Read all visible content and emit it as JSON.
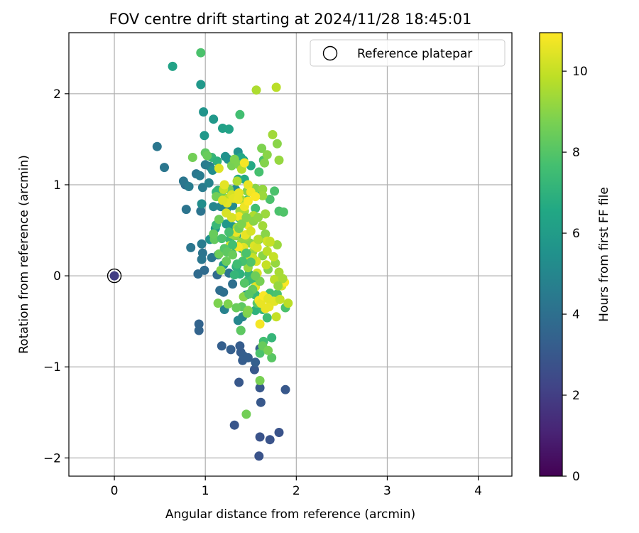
{
  "chart_data": {
    "type": "scatter",
    "title": "FOV centre drift starting at 2024/11/28 18:45:01",
    "xlabel": "Angular distance from reference (arcmin)",
    "ylabel": "Rotation from reference (arcmin)",
    "xlim": [
      -0.5,
      4.37
    ],
    "ylim": [
      -2.2,
      2.67
    ],
    "xticks": [
      0,
      1,
      2,
      3,
      4
    ],
    "yticks": [
      -2,
      -1,
      0,
      1,
      2
    ],
    "xtick_labels": [
      "0",
      "1",
      "2",
      "3",
      "4"
    ],
    "ytick_labels": [
      "−2",
      "−1",
      "0",
      "1",
      "2"
    ],
    "grid": true,
    "legend": {
      "position": "top-right",
      "entries": [
        "Reference platepar"
      ]
    },
    "reference_point": {
      "x": 0,
      "y": 0,
      "hours": 2.0
    },
    "colorbar": {
      "label": "Hours from first FF file",
      "range": [
        0,
        10.95
      ],
      "ticks": [
        0,
        2,
        4,
        6,
        8,
        10
      ],
      "tick_labels": [
        "0",
        "2",
        "4",
        "6",
        "8",
        "10"
      ],
      "colormap": "viridis"
    },
    "point_columns": [
      "x",
      "y",
      "hours"
    ],
    "points": [
      [
        1.59,
        -1.98,
        2.8
      ],
      [
        1.81,
        -1.72,
        2.8
      ],
      [
        1.6,
        -1.77,
        2.8
      ],
      [
        1.71,
        -1.8,
        2.8
      ],
      [
        1.32,
        -1.64,
        2.9
      ],
      [
        1.88,
        -1.25,
        3.0
      ],
      [
        1.6,
        -1.23,
        3.0
      ],
      [
        1.61,
        -1.39,
        3.0
      ],
      [
        1.37,
        -1.17,
        3.0
      ],
      [
        1.54,
        -1.03,
        3.0
      ],
      [
        1.38,
        -0.77,
        3.2
      ],
      [
        1.41,
        -0.93,
        3.2
      ],
      [
        1.39,
        -0.84,
        3.2
      ],
      [
        1.42,
        -0.88,
        3.3
      ],
      [
        1.47,
        -0.9,
        3.3
      ],
      [
        1.28,
        -0.81,
        3.3
      ],
      [
        1.18,
        -0.77,
        3.3
      ],
      [
        1.6,
        -0.8,
        3.3
      ],
      [
        1.55,
        -0.95,
        3.3
      ],
      [
        0.93,
        -0.53,
        3.5
      ],
      [
        0.93,
        -0.6,
        3.5
      ],
      [
        0.92,
        0.02,
        3.8
      ],
      [
        1.13,
        0.01,
        3.8
      ],
      [
        0.99,
        0.06,
        3.8
      ],
      [
        1.16,
        -0.16,
        3.9
      ],
      [
        1.3,
        -0.09,
        4.0
      ],
      [
        1.2,
        -0.18,
        4.0
      ],
      [
        1.26,
        0.03,
        4.2
      ],
      [
        1.35,
        0.12,
        4.2
      ],
      [
        0.97,
        0.25,
        4.2
      ],
      [
        0.96,
        0.18,
        4.3
      ],
      [
        1.07,
        0.2,
        4.3
      ],
      [
        0.84,
        0.31,
        4.3
      ],
      [
        0.96,
        0.35,
        4.5
      ],
      [
        1.14,
        0.23,
        4.5
      ],
      [
        1.21,
        -0.37,
        4.8
      ],
      [
        1.41,
        -0.45,
        4.8
      ],
      [
        1.36,
        -0.49,
        5.0
      ],
      [
        1.39,
        -0.6,
        5.2
      ],
      [
        1.45,
        -0.21,
        5.3
      ],
      [
        0.78,
        1.0,
        4.0
      ],
      [
        0.79,
        0.73,
        4.2
      ],
      [
        0.47,
        1.42,
        4.3
      ],
      [
        0.55,
        1.19,
        4.3
      ],
      [
        0.76,
        1.04,
        4.3
      ],
      [
        0.82,
        0.98,
        4.5
      ],
      [
        0.9,
        1.12,
        4.3
      ],
      [
        0.94,
        1.1,
        4.5
      ],
      [
        0.97,
        0.97,
        4.5
      ],
      [
        0.95,
        0.71,
        4.2
      ],
      [
        1.0,
        1.22,
        4.5
      ],
      [
        1.05,
        1.2,
        4.7
      ],
      [
        1.04,
        1.02,
        4.8
      ],
      [
        1.09,
        0.76,
        5.0
      ],
      [
        1.17,
        0.76,
        5.0
      ],
      [
        1.23,
        0.73,
        5.0
      ],
      [
        1.3,
        0.77,
        5.2
      ],
      [
        1.33,
        0.95,
        5.2
      ],
      [
        1.08,
        1.16,
        5.3
      ],
      [
        1.22,
        1.31,
        5.5
      ],
      [
        1.25,
        1.28,
        5.5
      ],
      [
        1.36,
        1.36,
        5.5
      ],
      [
        0.96,
        0.79,
        5.3
      ],
      [
        1.05,
        0.4,
        5.5
      ],
      [
        1.11,
        0.52,
        5.7
      ],
      [
        1.23,
        0.57,
        5.8
      ],
      [
        1.3,
        0.54,
        5.8
      ],
      [
        1.4,
        0.62,
        6.0
      ],
      [
        1.34,
        0.44,
        6.0
      ],
      [
        1.2,
        0.12,
        5.8
      ],
      [
        0.98,
        1.8,
        5.6
      ],
      [
        1.09,
        1.72,
        5.8
      ],
      [
        0.99,
        1.54,
        5.8
      ],
      [
        1.19,
        1.62,
        6.2
      ],
      [
        1.26,
        1.61,
        6.3
      ],
      [
        1.39,
        1.3,
        6.5
      ],
      [
        1.42,
        1.27,
        6.5
      ],
      [
        1.5,
        1.21,
        6.6
      ],
      [
        1.43,
        1.06,
        6.6
      ],
      [
        1.36,
        1.06,
        6.7
      ],
      [
        0.95,
        2.1,
        5.8
      ],
      [
        0.64,
        2.3,
        6.3
      ],
      [
        0.95,
        2.45,
        7.8
      ],
      [
        1.38,
        1.77,
        7.6
      ],
      [
        1.07,
        1.3,
        7.2
      ],
      [
        1.13,
        1.26,
        7.0
      ],
      [
        1.14,
        0.94,
        7.0
      ],
      [
        1.12,
        0.92,
        7.2
      ],
      [
        1.12,
        0.56,
        7.3
      ],
      [
        1.27,
        0.4,
        7.4
      ],
      [
        1.37,
        0.64,
        7.4
      ],
      [
        1.46,
        0.83,
        7.5
      ],
      [
        1.55,
        0.74,
        7.6
      ],
      [
        1.59,
        1.14,
        7.7
      ],
      [
        1.64,
        1.27,
        7.8
      ],
      [
        1.48,
        0.96,
        7.6
      ],
      [
        1.57,
        0.91,
        7.8
      ],
      [
        1.71,
        0.84,
        7.8
      ],
      [
        1.76,
        0.93,
        7.8
      ],
      [
        1.81,
        0.71,
        7.8
      ],
      [
        1.86,
        0.7,
        7.9
      ],
      [
        1.4,
        0.3,
        7.2
      ],
      [
        1.29,
        0.28,
        7.1
      ],
      [
        1.34,
        0.1,
        7.0
      ],
      [
        1.38,
        0.02,
        7.0
      ],
      [
        1.48,
        0.02,
        7.1
      ],
      [
        1.46,
        -0.06,
        7.3
      ],
      [
        1.32,
        0.01,
        7.2
      ],
      [
        1.52,
        -0.04,
        7.4
      ],
      [
        1.55,
        -0.38,
        7.0
      ],
      [
        1.63,
        -0.37,
        7.2
      ],
      [
        1.55,
        -0.21,
        7.3
      ],
      [
        1.62,
        -0.24,
        7.5
      ],
      [
        1.71,
        -0.19,
        7.6
      ],
      [
        1.79,
        -0.2,
        7.8
      ],
      [
        1.88,
        -0.35,
        7.8
      ],
      [
        1.73,
        -0.68,
        7.2
      ],
      [
        1.68,
        -0.46,
        7.5
      ],
      [
        1.64,
        -0.72,
        7.6
      ],
      [
        1.6,
        -0.85,
        7.8
      ],
      [
        1.73,
        -0.9,
        8.1
      ],
      [
        1.63,
        -0.77,
        8.4
      ],
      [
        1.57,
        -0.3,
        8.1
      ],
      [
        1.4,
        -0.34,
        8.2
      ],
      [
        1.34,
        -0.35,
        8.4
      ],
      [
        1.39,
        -0.6,
        8.2
      ],
      [
        1.45,
        -1.52,
        8.6
      ],
      [
        1.6,
        -1.15,
        8.7
      ],
      [
        1.69,
        -0.82,
        8.7
      ],
      [
        1.14,
        -0.3,
        8.8
      ],
      [
        1.25,
        -0.31,
        8.8
      ],
      [
        1.46,
        -0.41,
        8.8
      ],
      [
        1.47,
        -0.38,
        8.9
      ],
      [
        1.42,
        -0.23,
        9.0
      ],
      [
        1.23,
        0.16,
        8.4
      ],
      [
        1.15,
        0.24,
        8.5
      ],
      [
        1.17,
        0.06,
        9.0
      ],
      [
        1.1,
        0.4,
        8.3
      ],
      [
        1.09,
        0.46,
        8.4
      ],
      [
        1.15,
        0.62,
        8.5
      ],
      [
        1.12,
        0.87,
        8.6
      ],
      [
        1.19,
        0.87,
        8.6
      ],
      [
        1.26,
        0.95,
        8.7
      ],
      [
        1.29,
        1.21,
        8.7
      ],
      [
        1.37,
        1.22,
        8.8
      ],
      [
        1.32,
        1.28,
        8.8
      ],
      [
        1.0,
        1.35,
        8.2
      ],
      [
        1.02,
        1.32,
        8.4
      ],
      [
        0.86,
        1.3,
        8.6
      ],
      [
        1.62,
        1.4,
        8.8
      ],
      [
        1.65,
        1.24,
        8.9
      ],
      [
        1.79,
        1.45,
        9.0
      ],
      [
        1.81,
        1.27,
        9.2
      ],
      [
        1.74,
        1.55,
        9.4
      ],
      [
        1.68,
        1.33,
        9.0
      ],
      [
        1.56,
        2.04,
        9.6
      ],
      [
        1.78,
        2.07,
        9.8
      ],
      [
        1.46,
        0.93,
        8.9
      ],
      [
        1.55,
        0.96,
        9.0
      ],
      [
        1.63,
        0.95,
        9.2
      ],
      [
        1.63,
        0.88,
        9.3
      ],
      [
        1.66,
        0.68,
        9.3
      ],
      [
        1.63,
        0.55,
        9.4
      ],
      [
        1.66,
        0.46,
        9.0
      ],
      [
        1.69,
        0.37,
        9.0
      ],
      [
        1.77,
        0.14,
        9.2
      ],
      [
        1.79,
        0.34,
        9.3
      ],
      [
        1.69,
        0.07,
        8.9
      ],
      [
        1.63,
        0.22,
        9.0
      ],
      [
        1.59,
        0.4,
        8.8
      ],
      [
        1.56,
        0.33,
        8.9
      ],
      [
        1.49,
        0.36,
        9.0
      ],
      [
        1.45,
        0.43,
        9.2
      ],
      [
        1.52,
        0.26,
        9.3
      ],
      [
        1.49,
        0.15,
        9.4
      ],
      [
        1.47,
        0.09,
        9.2
      ],
      [
        1.44,
        0.24,
        9.0
      ],
      [
        1.4,
        0.37,
        9.1
      ],
      [
        1.33,
        0.44,
        9.1
      ],
      [
        1.29,
        0.46,
        9.2
      ],
      [
        1.35,
        0.53,
        9.3
      ],
      [
        1.38,
        0.71,
        9.4
      ],
      [
        1.43,
        0.71,
        9.5
      ],
      [
        1.46,
        0.6,
        9.3
      ],
      [
        1.39,
        0.84,
        9.5
      ],
      [
        1.35,
        1.04,
        9.6
      ],
      [
        1.4,
        1.17,
        9.7
      ],
      [
        1.25,
        0.85,
        9.8
      ],
      [
        1.2,
        0.95,
        10.0
      ],
      [
        1.29,
        0.89,
        10.3
      ],
      [
        1.31,
        0.85,
        10.5
      ],
      [
        1.36,
        0.84,
        10.6
      ],
      [
        1.43,
        0.76,
        10.7
      ],
      [
        1.37,
        0.65,
        10.8
      ],
      [
        1.47,
        0.56,
        10.7
      ],
      [
        1.44,
        0.45,
        10.6
      ],
      [
        1.42,
        0.31,
        10.5
      ],
      [
        1.54,
        0.33,
        10.4
      ],
      [
        1.57,
        0.31,
        10.3
      ],
      [
        1.5,
        0.49,
        10.3
      ],
      [
        1.24,
        0.8,
        10.5
      ],
      [
        1.19,
        0.83,
        10.4
      ],
      [
        1.15,
        1.18,
        10.4
      ],
      [
        1.21,
        1.0,
        10.5
      ],
      [
        1.37,
        0.91,
        10.6
      ],
      [
        1.47,
        1.0,
        10.6
      ],
      [
        1.43,
        1.24,
        10.8
      ],
      [
        1.5,
        0.92,
        10.8
      ],
      [
        1.55,
        0.87,
        10.9
      ],
      [
        1.47,
        0.82,
        10.9
      ],
      [
        1.36,
        0.32,
        10.8
      ],
      [
        1.34,
        0.48,
        10.6
      ],
      [
        1.29,
        0.64,
        10.3
      ],
      [
        1.23,
        0.69,
        10.3
      ],
      [
        1.27,
        0.33,
        10.2
      ],
      [
        1.68,
        0.38,
        10.2
      ],
      [
        1.71,
        0.38,
        10.1
      ],
      [
        1.56,
        0.16,
        10.3
      ],
      [
        1.52,
        0.2,
        10.0
      ],
      [
        1.47,
        0.21,
        10.1
      ],
      [
        1.57,
        0.03,
        10.2
      ],
      [
        1.55,
        -0.12,
        10.5
      ],
      [
        1.59,
        -0.27,
        10.8
      ],
      [
        1.61,
        -0.3,
        10.6
      ],
      [
        1.6,
        -0.53,
        10.8
      ],
      [
        1.66,
        -0.36,
        10.6
      ],
      [
        1.7,
        -0.34,
        10.6
      ],
      [
        1.76,
        -0.28,
        10.5
      ],
      [
        1.78,
        -0.45,
        10.0
      ],
      [
        1.84,
        -0.11,
        10.3
      ],
      [
        1.82,
        -0.26,
        10.0
      ],
      [
        1.91,
        -0.3,
        9.8
      ],
      [
        1.87,
        -0.07,
        10.9
      ],
      [
        1.64,
        -0.22,
        10.9
      ],
      [
        1.69,
        -0.25,
        10.5
      ],
      [
        1.76,
        -0.04,
        9.8
      ],
      [
        1.85,
        -0.03,
        9.5
      ],
      [
        1.8,
        -0.11,
        9.2
      ],
      [
        1.81,
        0.04,
        9.5
      ],
      [
        1.68,
        0.27,
        9.8
      ],
      [
        1.71,
        0.37,
        10.0
      ],
      [
        1.67,
        0.12,
        10.0
      ],
      [
        1.75,
        0.21,
        10.0
      ],
      [
        1.58,
        0.4,
        9.7
      ],
      [
        1.53,
        0.66,
        9.6
      ],
      [
        1.6,
        -0.06,
        8.7
      ],
      [
        1.55,
        0.0,
        8.5
      ],
      [
        1.52,
        -0.15,
        8.3
      ],
      [
        1.48,
        -0.2,
        8.1
      ],
      [
        1.43,
        -0.08,
        8.0
      ],
      [
        1.5,
        0.15,
        7.9
      ],
      [
        1.45,
        0.25,
        7.8
      ],
      [
        1.41,
        0.16,
        7.7
      ],
      [
        1.35,
        0.13,
        7.5
      ],
      [
        1.3,
        0.34,
        7.6
      ],
      [
        1.26,
        0.48,
        7.7
      ],
      [
        1.18,
        0.41,
        7.8
      ],
      [
        1.21,
        0.3,
        8.0
      ],
      [
        1.24,
        0.26,
        8.2
      ],
      [
        1.3,
        0.23,
        8.4
      ],
      [
        1.37,
        0.52,
        8.6
      ],
      [
        1.4,
        0.57,
        8.8
      ],
      [
        1.45,
        0.64,
        8.9
      ],
      [
        1.53,
        0.6,
        9.0
      ],
      [
        1.58,
        0.64,
        9.1
      ]
    ]
  }
}
